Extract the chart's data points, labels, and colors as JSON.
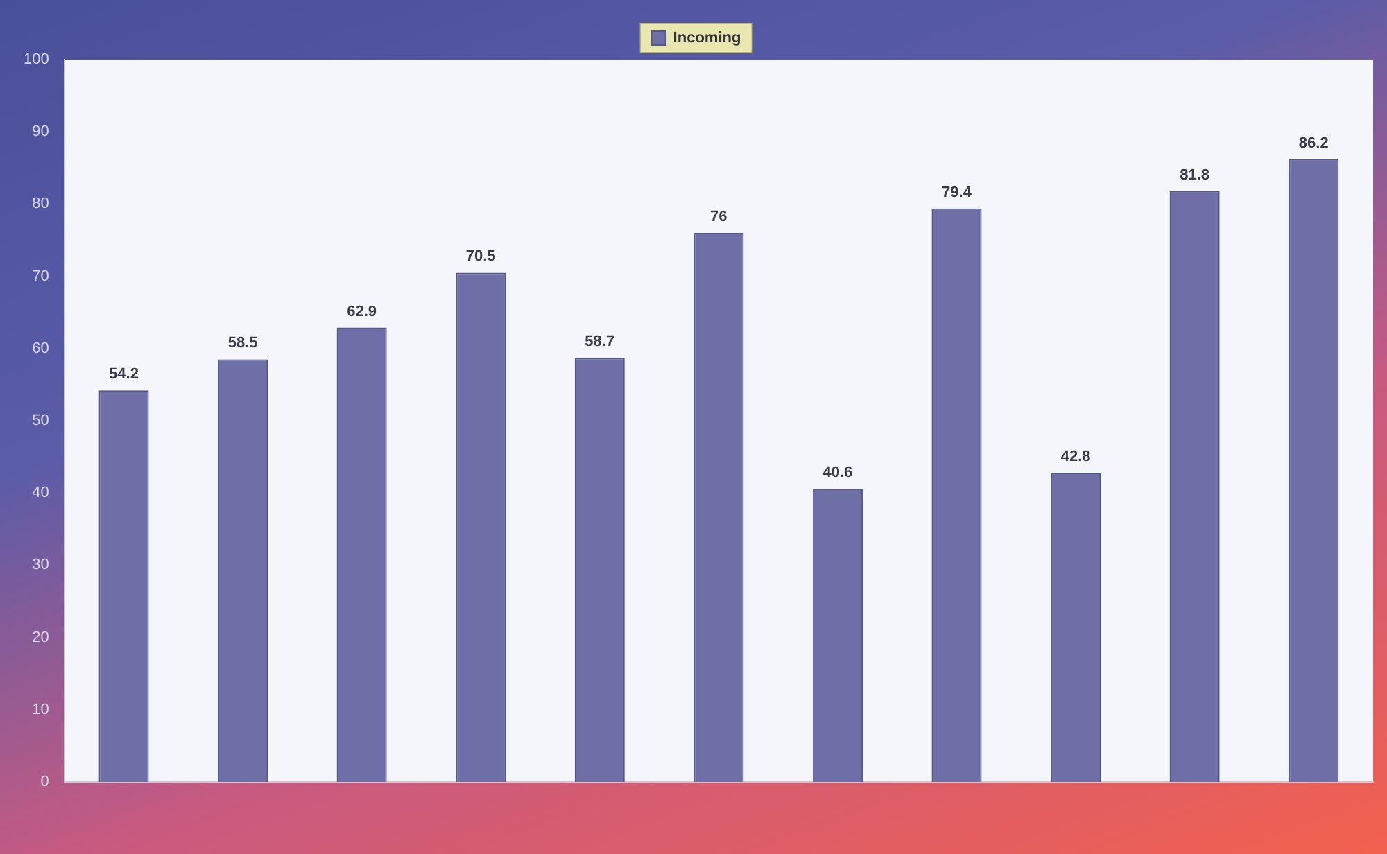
{
  "chart_data": {
    "type": "bar",
    "categories": [
      null,
      null,
      null,
      null,
      null,
      null,
      null,
      null,
      null,
      null,
      null
    ],
    "series": [
      {
        "name": "Incoming",
        "color": "#6d6fa6",
        "values": [
          54.2,
          58.5,
          62.9,
          70.5,
          58.7,
          76,
          40.6,
          79.4,
          42.8,
          81.8,
          86.2
        ]
      }
    ],
    "ylim": [
      0,
      100
    ],
    "yticks": [
      0,
      10,
      20,
      30,
      40,
      50,
      60,
      70,
      80,
      90,
      100
    ],
    "data_labels": true,
    "legend": "top",
    "grid": false
  }
}
